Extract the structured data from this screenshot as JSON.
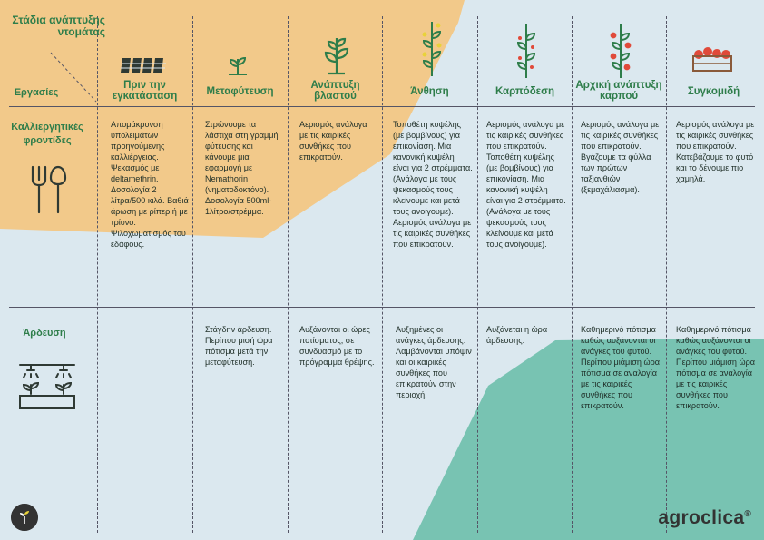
{
  "header": {
    "stages_title": "Στάδια ανάπτυξης ντομάτας",
    "tasks_label": "Εργασίες"
  },
  "columns": [
    {
      "label": "Πριν την εγκατάσταση",
      "icon": "seed-tray-icon"
    },
    {
      "label": "Μεταφύτευση",
      "icon": "seedling-icon"
    },
    {
      "label": "Ανάπτυξη βλαστού",
      "icon": "plant-growth-icon"
    },
    {
      "label": "Άνθηση",
      "icon": "flowering-plant-icon"
    },
    {
      "label": "Καρπόδεση",
      "icon": "fruit-set-plant-icon"
    },
    {
      "label": "Αρχική ανάπτυξη καρπού",
      "icon": "fruit-growth-plant-icon"
    },
    {
      "label": "Συγκομιδή",
      "icon": "harvest-crate-icon"
    }
  ],
  "rows": [
    {
      "label": "Καλλιεργητικές φροντίδες",
      "icon": "garden-tools-icon",
      "cells": [
        "Απομάκρυνση υπολειμάτων προηγούμενης καλλιέργειας. Ψεκασμός με deltamethrin. Δοσολογία 2 λίτρα/500 κιλά. Βαθιά άρωση με ρίπερ ή με τρίυνο. Ψιλοχωματισμός του εδάφους.",
        "Στρώνουμε τα λάστιχα στη γραμμή φύτευσης και κάνουμε μια εφαρμογή με Nemathorin (νηματοδοκτόνο). Δοσολογία 500ml-1λίτρο/στρέμμα.",
        "Αερισμός ανάλογα με τις καιρικές συνθήκες που επικρατούν.",
        "Τοποθέτη κυψέλης (με βομβίνους) για επικονίαση. Μια κανονική κυψέλη είναι για 2 στρέμματα. (Ανάλογα με τους ψεκασμούς τους κλείνουμε και μετά τους ανοίγουμε). Αερισμός ανάλογα με τις καιρικές συνθήκες που επικρατούν.",
        "Αερισμός ανάλογα με τις καιρικές συνθήκες που επικρατούν. Τοποθέτη κυψέλης (με βομβίνους) για επικονίαση. Μια κανονική κυψέλη είναι για 2 στρέμματα. (Ανάλογα με τους ψεκασμούς τους κλείνουμε και μετά τους ανοίγουμε).",
        "Αερισμός ανάλογα με τις καιρικές συνθήκες που επικρατούν. Βγάζουμε τα φύλλα των πρώτων ταξιανθιών (ξεμαχάλιασμα).",
        "Αερισμός ανάλογα με τις καιρικές συνθήκες που επικρατούν. Κατεβάζουμε το φυτό και το δένουμε πιο χαμηλά."
      ]
    },
    {
      "label": "Άρδευση",
      "icon": "irrigation-icon",
      "cells": [
        "",
        "Στάγδην άρδευση. Περίπου μισή ώρα πότισμα μετά την μεταφύτευση.",
        "Αυξάνονται οι ώρες ποτίσματος, σε συνδυασμό με το πρόγραμμα θρέψης.",
        "Αυξημένες οι ανάγκες άρδευσης. Λαμβάνονται υπόψιν και οι καιρικές συνθήκες που επικρατούν στην περιοχή.",
        "Αυξάνεται η ώρα άρδευσης.",
        "Καθημερινό πότισμα καθώς αυξάνονται οι ανάγκες του φυτού. Περίπου μιάμιση ώρα πότισμα σε αναλογία με τις καιρικές συνθήκες που επικρατούν.",
        "Καθημερινό πότισμα καθώς αυξάνονται οι ανάγκες του φυτού. Περίπου μιάμιση ώρα πότισμα σε αναλογία με τις καιρικές συνθήκες που επικρατούν."
      ]
    }
  ],
  "brand": {
    "name": "agroclica",
    "mark": "®"
  },
  "colors": {
    "background": "#dbe8ef",
    "sand": "#f2c98a",
    "teal": "#78c3b2",
    "green": "#2e7d4a",
    "tomato": "#e04a3a"
  }
}
